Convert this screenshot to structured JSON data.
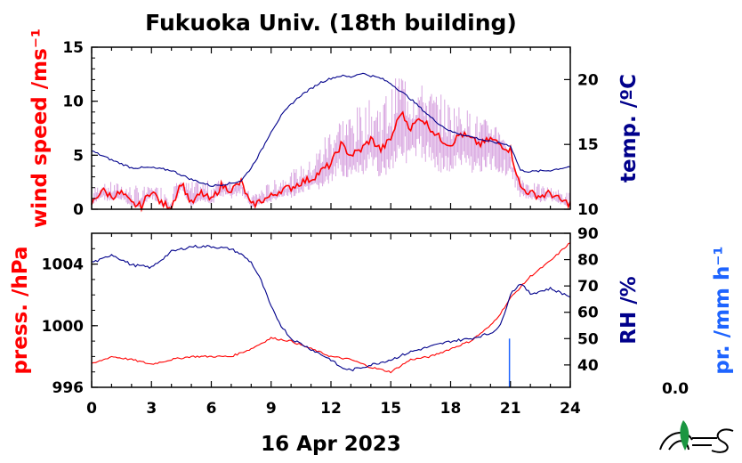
{
  "title": "Fukuoka Univ. (18th building)",
  "date_label": "16 Apr 2023",
  "precip_value": "0.0",
  "colors": {
    "wind_raw": "#d8a6e0",
    "wind_avg": "#ff0000",
    "temp": "#00008b",
    "pressure": "#ff0000",
    "rh": "#00008b",
    "precip": "#1e64ff"
  },
  "chart_data": [
    {
      "type": "line",
      "title": "",
      "xlabel": "",
      "x_ticks": [
        "0",
        "3",
        "6",
        "9",
        "12",
        "15",
        "18",
        "21",
        "24"
      ],
      "xlim": [
        0,
        24
      ],
      "left_axis": {
        "label": "wind speed /ms⁻¹",
        "ylim": [
          0,
          15
        ],
        "ticks": [
          "0",
          "5",
          "10",
          "15"
        ]
      },
      "right_axis": {
        "label": "temp. /ºC",
        "ylim": [
          10,
          22.5
        ],
        "ticks": [
          "10",
          "15",
          "20"
        ]
      },
      "series": [
        {
          "axis": "left",
          "style": "gust",
          "x": [
            0,
            1,
            2,
            3,
            4,
            5,
            6,
            7,
            8,
            9,
            10,
            11,
            12,
            13,
            14,
            15,
            15.5,
            16,
            17,
            18,
            19,
            20,
            20.5,
            21,
            22,
            23,
            24
          ],
          "values": [
            2,
            2.5,
            2.2,
            2,
            2.4,
            2.5,
            2.6,
            2.8,
            1.5,
            2.5,
            3.5,
            4.5,
            8,
            9,
            10,
            11,
            13,
            12,
            11,
            10,
            9,
            8,
            8,
            4,
            2.5,
            2,
            1.5
          ]
        },
        {
          "axis": "left",
          "style": "avg",
          "x": [
            0,
            0.5,
            1,
            1.5,
            2,
            2.5,
            3,
            3.5,
            4,
            4.5,
            5,
            5.5,
            6,
            6.5,
            7,
            7.5,
            8,
            8.5,
            9,
            9.5,
            10,
            10.5,
            11,
            11.5,
            12,
            12.5,
            13,
            13.5,
            14,
            14.5,
            15,
            15.5,
            16,
            16.5,
            17,
            17.5,
            18,
            18.5,
            19,
            19.5,
            20,
            20.5,
            21,
            21.5,
            22,
            22.5,
            23,
            23.5,
            24
          ],
          "values": [
            0.5,
            1.8,
            1.2,
            1.5,
            0.5,
            0.3,
            1.8,
            0.5,
            0.3,
            2.5,
            0.5,
            1.5,
            0.8,
            2.2,
            1.8,
            2.5,
            0.3,
            0.8,
            1.2,
            1.8,
            2,
            2.5,
            2.8,
            3.5,
            4.2,
            6,
            5,
            5.5,
            6.5,
            5.5,
            6.5,
            9,
            7.5,
            8.5,
            7.5,
            6.5,
            6,
            7,
            6.5,
            6,
            6.5,
            6,
            5.5,
            2,
            1.5,
            1.2,
            1.5,
            0.8,
            0.5
          ]
        },
        {
          "axis": "right",
          "style": "temp",
          "x": [
            0,
            1,
            2,
            3,
            4,
            5,
            6,
            7,
            7.5,
            8,
            8.5,
            9,
            9.5,
            10,
            10.5,
            11,
            11.5,
            12,
            12.5,
            13,
            13.5,
            14,
            14.5,
            15,
            15.5,
            16,
            16.5,
            17,
            17.5,
            18,
            18.5,
            19,
            19.5,
            20,
            20.5,
            21,
            21.5,
            22,
            23,
            24
          ],
          "values": [
            14.5,
            13.8,
            13.2,
            13.2,
            13,
            12.3,
            11.8,
            12,
            12.2,
            13.2,
            14.5,
            16,
            17.2,
            18.1,
            18.8,
            19.3,
            19.8,
            20.1,
            20.3,
            20.2,
            20.5,
            20.3,
            20.1,
            19.7,
            19.1,
            18.5,
            17.8,
            17.1,
            16.5,
            16,
            15.8,
            15.6,
            15.4,
            15.2,
            15.1,
            14.9,
            13,
            12.9,
            13,
            13.3
          ]
        }
      ]
    },
    {
      "type": "line",
      "title": "",
      "xlabel": "16 Apr 2023",
      "x_ticks": [
        "0",
        "3",
        "6",
        "9",
        "12",
        "15",
        "18",
        "21",
        "24"
      ],
      "xlim": [
        0,
        24
      ],
      "left_axis": {
        "label": "press. /hPa",
        "ylim": [
          996,
          1006
        ],
        "ticks": [
          "996",
          "1000",
          "1004"
        ]
      },
      "right_axis": {
        "label": "RH /%",
        "ylim": [
          31.5,
          90
        ],
        "ticks": [
          "40",
          "50",
          "60",
          "70",
          "80",
          "90"
        ]
      },
      "extra_axis": {
        "label": "pr. /mm h⁻¹",
        "value": "0.0"
      },
      "series": [
        {
          "axis": "left",
          "style": "pressure",
          "x": [
            0,
            1,
            2,
            3,
            4,
            5,
            6,
            7,
            8,
            9,
            10,
            11,
            12,
            13,
            14,
            15,
            16,
            17,
            18,
            19,
            20,
            20.5,
            21,
            21.5,
            22,
            23,
            24
          ],
          "values": [
            997.5,
            998,
            997.8,
            997.5,
            997.8,
            998,
            998,
            998,
            998.5,
            999.2,
            999,
            998.5,
            998,
            997.8,
            997.3,
            997,
            997.8,
            998,
            998.5,
            999,
            1000,
            1000.8,
            1001.8,
            1002.5,
            1003.2,
            1004.2,
            1005.4
          ]
        },
        {
          "axis": "right",
          "style": "rh",
          "x": [
            0,
            0.5,
            1,
            1.5,
            2,
            3,
            4,
            5,
            6,
            7,
            7.5,
            8,
            8.5,
            9,
            9.5,
            10,
            11,
            12,
            12.5,
            13,
            14,
            15,
            16,
            17,
            18,
            19,
            20,
            20.5,
            21,
            21.5,
            22,
            23,
            24
          ],
          "values": [
            79,
            80,
            82,
            80,
            78,
            77,
            83,
            85,
            85,
            84,
            82,
            79,
            72,
            62,
            55,
            50,
            46,
            42,
            39,
            38,
            40,
            42,
            45,
            47,
            49,
            50,
            52,
            55,
            67,
            71,
            67,
            69,
            66
          ]
        },
        {
          "axis": "right",
          "style": "precip",
          "x": [
            20.95
          ],
          "values": [
            50
          ]
        }
      ]
    }
  ]
}
